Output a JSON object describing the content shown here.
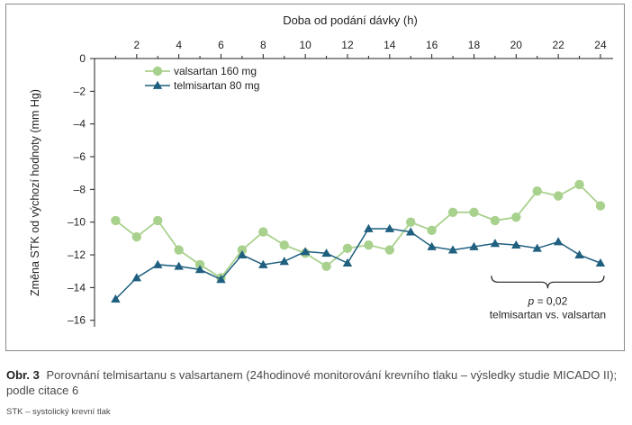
{
  "chart_data": {
    "type": "line",
    "title": "",
    "xlabel": "Doba od podání dávky (h)",
    "ylabel": "Změna STK od výchozí hodnoty (mm Hg)",
    "xlim": [
      0,
      24.6
    ],
    "ylim": [
      -16.4,
      0
    ],
    "x_ticks": [
      2,
      4,
      6,
      8,
      10,
      12,
      14,
      16,
      18,
      20,
      22,
      24
    ],
    "x_tick_labels": [
      "2",
      "4",
      "6",
      "8",
      "10",
      "12",
      "14",
      "16",
      "18",
      "20",
      "22",
      "24"
    ],
    "y_ticks": [
      0,
      -2,
      -4,
      -6,
      -8,
      -10,
      -12,
      -14,
      -16
    ],
    "y_tick_labels": [
      "0",
      "–2",
      "–4",
      "–6",
      "–8",
      "–10",
      "–12",
      "–14",
      "–16"
    ],
    "x_axis_position": "top",
    "grid": false,
    "legend_position": "top-left",
    "colors": {
      "valsartan": "#a9d18e",
      "telmisartan": "#1f5f7f",
      "axis": "#231f20"
    },
    "series": [
      {
        "name": "valsartan 160 mg",
        "marker": "circle",
        "x": [
          1,
          2,
          3,
          4,
          5,
          6,
          7,
          8,
          9,
          10,
          11,
          12,
          13,
          14,
          15,
          16,
          17,
          18,
          19,
          20,
          21,
          22,
          23,
          24
        ],
        "values": [
          -9.9,
          -10.9,
          -9.9,
          -11.7,
          -12.6,
          -13.4,
          -11.7,
          -10.6,
          -11.4,
          -11.9,
          -12.7,
          -11.6,
          -11.4,
          -11.7,
          -10.0,
          -10.5,
          -9.4,
          -9.4,
          -9.9,
          -9.7,
          -8.1,
          -8.4,
          -7.7,
          -9.0
        ]
      },
      {
        "name": "telmisartan 80 mg",
        "marker": "triangle",
        "x": [
          1,
          2,
          3,
          4,
          5,
          6,
          7,
          8,
          9,
          10,
          11,
          12,
          13,
          14,
          15,
          16,
          17,
          18,
          19,
          20,
          21,
          22,
          23,
          24
        ],
        "values": [
          -14.7,
          -13.4,
          -12.6,
          -12.7,
          -12.9,
          -13.5,
          -12.0,
          -12.6,
          -12.4,
          -11.8,
          -11.9,
          -12.5,
          -10.4,
          -10.4,
          -10.6,
          -11.5,
          -11.7,
          -11.5,
          -11.3,
          -11.4,
          -11.6,
          -11.2,
          -12.0,
          -12.5
        ]
      }
    ],
    "annotation": {
      "bracket_x": [
        19,
        24
      ],
      "bracket_y": -13.5,
      "p_label": "p",
      "p_value": " = 0,02",
      "comparison": "telmisartan vs. valsartan"
    }
  },
  "caption": {
    "label": "Obr. 3",
    "text": "Porovnání telmisartanu s valsartanem (24hodinové monitorování krevního tlaku – výsledky studie MICADO II); podle citace 6"
  },
  "footnote": "STK – systolický krevní tlak"
}
